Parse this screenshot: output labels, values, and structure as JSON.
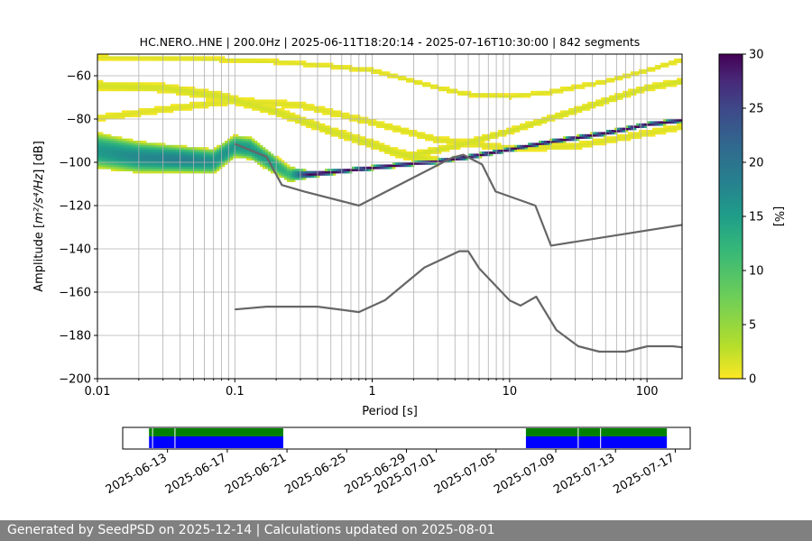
{
  "footer": {
    "text": "Generated by SeedPSD on 2025-12-14 | Calculations updated on 2025-08-01"
  },
  "chart_data": {
    "type": "heatmap",
    "title": "HC.NERO..HNE | 200.0Hz | 2025-06-11T18:20:14 - 2025-07-16T10:30:00 | 842 segments",
    "xlabel": "Period [s]",
    "ylabel_main": "Amplitude [",
    "ylabel_math": "m²/s⁴/Hz",
    "ylabel_tail": "] [dB]",
    "x_scale": "log",
    "xlim": [
      0.01,
      180
    ],
    "ylim": [
      -200,
      -50
    ],
    "x_ticks": [
      0.01,
      0.1,
      1,
      10,
      100
    ],
    "x_tick_labels": [
      "0.01",
      "0.1",
      "1",
      "10",
      "100"
    ],
    "y_ticks": [
      -200,
      -180,
      -160,
      -140,
      -120,
      -100,
      -80,
      -60
    ],
    "y_tick_labels": [
      "−200",
      "−180",
      "−160",
      "−140",
      "−120",
      "−100",
      "−80",
      "−60"
    ],
    "grid": true,
    "colorbar": {
      "label": "[%]",
      "range": [
        0,
        30
      ],
      "ticks": [
        0,
        5,
        10,
        15,
        20,
        25,
        30
      ],
      "tick_labels": [
        "0",
        "5",
        "10",
        "15",
        "20",
        "25",
        "30"
      ]
    },
    "nhnm": {
      "name": "New High Noise Model",
      "x": [
        0.1,
        0.17,
        0.22,
        0.32,
        0.8,
        3.8,
        4.6,
        6.3,
        7.9,
        15.4,
        20,
        180
      ],
      "y": [
        -91.5,
        -97.4,
        -110.5,
        -113.5,
        -120,
        -97.9,
        -96.5,
        -101,
        -113.5,
        -120,
        -138.5,
        -128.9
      ]
    },
    "nlnm": {
      "name": "New Low Noise Model",
      "x": [
        0.1,
        0.17,
        0.4,
        0.8,
        1.24,
        2.4,
        4.3,
        5,
        6,
        10,
        12,
        15.6,
        21.9,
        31.6,
        45,
        70,
        101,
        154,
        180
      ],
      "y": [
        -168,
        -166.7,
        -166.7,
        -169.2,
        -163.7,
        -148.6,
        -141.1,
        -141.1,
        -149,
        -163.8,
        -166.2,
        -162.1,
        -177.5,
        -185,
        -187.5,
        -187.5,
        -185,
        -185,
        -185.5
      ]
    },
    "psd_bands": [
      {
        "name": "main microseism/instrument band",
        "x": [
          0.01,
          0.02,
          0.04,
          0.07,
          0.1,
          0.13,
          0.18,
          0.25,
          0.35,
          0.6,
          1,
          2,
          3,
          5,
          10,
          20,
          50,
          100,
          180
        ],
        "y": [
          -95,
          -98,
          -99,
          -100,
          -93,
          -94,
          -100,
          -106,
          -106,
          -104.5,
          -103,
          -101,
          -100,
          -98,
          -94.5,
          -91,
          -87,
          -83,
          -81
        ],
        "width": [
          16,
          14,
          12,
          11,
          10,
          10,
          9,
          7,
          3,
          2,
          2,
          2,
          2,
          2,
          2,
          2,
          2,
          2,
          2
        ],
        "peak": [
          14,
          16,
          17,
          15,
          14,
          14,
          13,
          10,
          30,
          30,
          30,
          30,
          30,
          30,
          30,
          30,
          30,
          30,
          30
        ]
      },
      {
        "name": "upper descending track",
        "x": [
          0.01,
          0.03,
          0.08,
          0.2,
          0.5,
          1,
          1.5,
          2.2,
          3
        ],
        "y": [
          -65,
          -66,
          -70,
          -77,
          -86,
          -92,
          -96,
          -98.5,
          -100
        ],
        "width": [
          4,
          4,
          4,
          4,
          4,
          4,
          4,
          4,
          4
        ],
        "peak": [
          2,
          2,
          2,
          2,
          2,
          2,
          2,
          2,
          2
        ]
      },
      {
        "name": "upper ascending track",
        "x": [
          2,
          4,
          10,
          20,
          50,
          100,
          180
        ],
        "y": [
          -97,
          -93,
          -86,
          -80,
          -72,
          -66,
          -63
        ],
        "width": [
          3,
          3,
          3,
          3,
          3,
          3,
          3
        ],
        "peak": [
          2,
          2,
          2,
          2,
          2,
          2,
          2
        ]
      },
      {
        "name": "top track",
        "x": [
          0.01,
          0.05,
          0.2,
          0.5,
          1,
          2,
          3,
          5,
          10,
          20,
          50,
          100,
          180
        ],
        "y": [
          -52,
          -52.5,
          -54,
          -56,
          -58,
          -63,
          -66,
          -69,
          -70,
          -68,
          -63,
          -58,
          -53
        ],
        "width": [
          2,
          2,
          2,
          2,
          2,
          2,
          2,
          2,
          2,
          2,
          2,
          2,
          2
        ],
        "peak": [
          1.5,
          1.5,
          1.5,
          1.5,
          1.5,
          1.5,
          1.5,
          1.5,
          1.5,
          1.5,
          1.5,
          1.5,
          1.5
        ]
      },
      {
        "name": "mid arch track",
        "x": [
          0.01,
          0.03,
          0.1,
          0.3,
          1,
          3,
          10,
          30,
          100,
          180
        ],
        "y": [
          -80,
          -76,
          -72,
          -74,
          -82,
          -90,
          -94,
          -93,
          -87,
          -84
        ],
        "width": [
          3,
          3,
          3,
          3,
          3,
          3,
          3,
          3,
          3,
          3
        ],
        "peak": [
          1.5,
          1.5,
          1.5,
          1.5,
          1.5,
          1.5,
          1.5,
          1.5,
          1.5,
          1.5
        ]
      }
    ],
    "timeline": {
      "xlim": [
        "2025-06-10",
        "2025-07-18"
      ],
      "tick_dates": [
        "2025-06-13",
        "2025-06-17",
        "2025-06-21",
        "2025-06-25",
        "2025-06-29",
        "2025-07-01",
        "2025-07-05",
        "2025-07-09",
        "2025-07-13",
        "2025-07-17"
      ],
      "data_ranges": [
        {
          "start": "2025-06-11T18:20",
          "end": "2025-06-20T18:00",
          "color": "#008000"
        },
        {
          "start": "2025-07-07T00:00",
          "end": "2025-07-16T10:30",
          "color": "#008000"
        }
      ],
      "psd_ranges": [
        {
          "start": "2025-06-11T18:20",
          "end": "2025-06-20T18:00",
          "color": "#0000ff"
        },
        {
          "start": "2025-07-07T00:00",
          "end": "2025-07-16T10:30",
          "color": "#0000ff"
        }
      ],
      "gaps": [
        "2025-06-12T00:00",
        "2025-06-13T12:00",
        "2025-07-10T12:00",
        "2025-07-12T00:00"
      ]
    }
  }
}
